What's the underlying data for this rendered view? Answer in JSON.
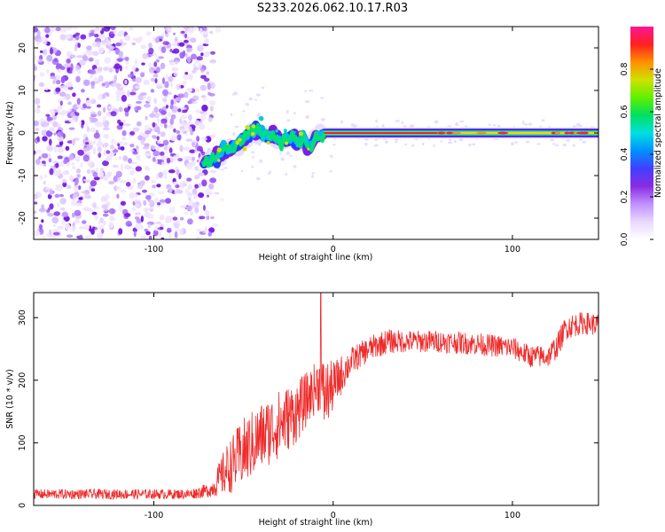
{
  "title": "S233.2026.062.10.17.R03",
  "colors": {
    "snr_line": "#ee2a2a",
    "colorbar": [
      "#ffffff",
      "#e8d8ff",
      "#c090ff",
      "#8a2be2",
      "#4040ff",
      "#0090ff",
      "#00e0e0",
      "#00e060",
      "#60f000",
      "#d0e000",
      "#ff9000",
      "#ff2020",
      "#ff1493"
    ]
  },
  "chart_data": [
    {
      "type": "heatmap",
      "title": "",
      "xlabel": "Height of straight line (km)",
      "ylabel": "Frequency (Hz)",
      "xlim": [
        -167,
        148
      ],
      "ylim": [
        -25,
        25
      ],
      "xticks": [
        -100,
        0,
        100
      ],
      "yticks": [
        -20,
        -10,
        0,
        10,
        20
      ],
      "noise_region_x": [
        -167,
        -67
      ],
      "carrier_track": [
        {
          "x": -72,
          "y": -7
        },
        {
          "x": -66,
          "y": -6
        },
        {
          "x": -60,
          "y": -4
        },
        {
          "x": -54,
          "y": -3
        },
        {
          "x": -48,
          "y": -1
        },
        {
          "x": -44,
          "y": 1
        },
        {
          "x": -40,
          "y": 0
        },
        {
          "x": -36,
          "y": -1
        },
        {
          "x": -32,
          "y": -1
        },
        {
          "x": -28,
          "y": -2
        },
        {
          "x": -24,
          "y": -1
        },
        {
          "x": -20,
          "y": -2
        },
        {
          "x": -16,
          "y": -1
        },
        {
          "x": -13,
          "y": -4
        },
        {
          "x": -10,
          "y": -1
        },
        {
          "x": -5,
          "y": 0
        },
        {
          "x": 0,
          "y": 0
        },
        {
          "x": 40,
          "y": 0
        },
        {
          "x": 80,
          "y": 0
        },
        {
          "x": 120,
          "y": 0
        },
        {
          "x": 148,
          "y": 0
        }
      ],
      "colorbar": {
        "label": "Normalized spectral amplitude",
        "range": [
          0,
          1
        ],
        "ticks": [
          "0.0",
          "0.2",
          "0.4",
          "0.6",
          "0.8"
        ]
      }
    },
    {
      "type": "line",
      "title": "",
      "xlabel": "Height of straight line (km)",
      "ylabel": "SNR (10 * v/v)",
      "xlim": [
        -167,
        148
      ],
      "ylim": [
        0,
        340
      ],
      "xticks": [
        -100,
        0,
        100
      ],
      "yticks": [
        0,
        100,
        200,
        300
      ],
      "series": [
        {
          "name": "SNR",
          "x": [
            -167,
            -140,
            -120,
            -100,
            -80,
            -68,
            -60,
            -50,
            -40,
            -30,
            -20,
            -12,
            -8,
            -5,
            0,
            10,
            20,
            30,
            40,
            60,
            80,
            100,
            110,
            120,
            125,
            130,
            140,
            148
          ],
          "mean": [
            18,
            18,
            18,
            18,
            18,
            25,
            55,
            85,
            110,
            130,
            150,
            180,
            195,
            175,
            190,
            230,
            250,
            262,
            262,
            262,
            258,
            252,
            238,
            238,
            255,
            285,
            292,
            288
          ],
          "spread": [
            8,
            8,
            8,
            8,
            8,
            12,
            40,
            55,
            55,
            55,
            50,
            40,
            45,
            60,
            40,
            22,
            20,
            20,
            18,
            18,
            18,
            18,
            18,
            18,
            20,
            20,
            18,
            18
          ],
          "spikes": [
            {
              "x": -7,
              "y": 340
            }
          ]
        }
      ]
    }
  ]
}
